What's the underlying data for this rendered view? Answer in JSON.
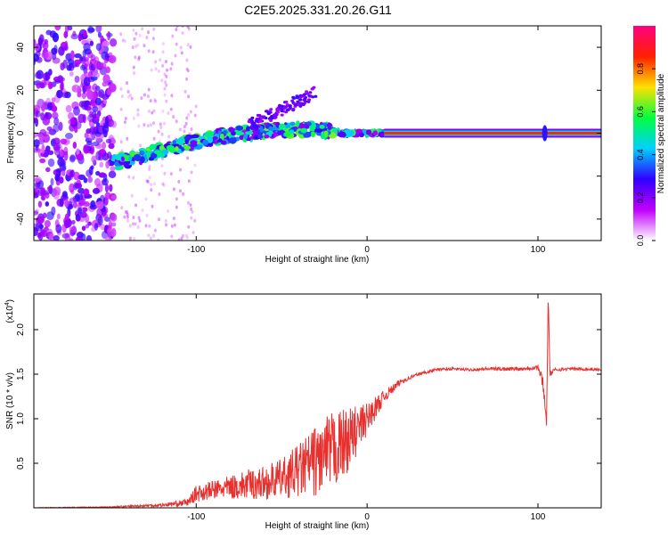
{
  "title": "C2E5.2025.331.20.26.G11",
  "colors": {
    "spectrum_carrier": "#e8302e",
    "snr_line": "#e8302e",
    "noise_purple": "#8a3fe0"
  },
  "chart_data": [
    {
      "type": "heatmap",
      "xlabel": "Height of straight line (km)",
      "ylabel": "Frequency (Hz)",
      "xlim": [
        -195,
        137
      ],
      "ylim": [
        -50,
        50
      ],
      "xticks": [
        -100,
        0,
        100
      ],
      "xtick_labels": [
        "-100",
        "0",
        "100"
      ],
      "yticks": [
        -40,
        -20,
        0,
        20,
        40
      ],
      "ytick_labels": [
        "-40",
        "-20",
        "0",
        "20",
        "40"
      ],
      "colorbar": {
        "label": "Normalized spectral amplitude",
        "range": [
          0,
          1
        ],
        "ticks": [
          0.0,
          0.2,
          0.4,
          0.6,
          0.8
        ],
        "tick_labels": [
          "0.0",
          "0.2",
          "0.4",
          "0.6",
          "0.8"
        ],
        "colormap": [
          "#ffffff",
          "#c000ff",
          "#3000ff",
          "#00d0ff",
          "#00ff40",
          "#ffe000",
          "#ff2000",
          "#ff0080"
        ]
      },
      "features": {
        "carrier_line": {
          "x_range": [
            10,
            137
          ],
          "freq": 0,
          "amplitude": 1.0
        },
        "ionospheric_trace": [
          {
            "x": -148,
            "freq": -14
          },
          {
            "x": -120,
            "freq": -8
          },
          {
            "x": -90,
            "freq": -2
          },
          {
            "x": -60,
            "freq": 1
          },
          {
            "x": -30,
            "freq": 2
          },
          {
            "x": -15,
            "freq": 0
          },
          {
            "x": 10,
            "freq": 0
          }
        ],
        "noise_region_x": [
          -195,
          -148
        ],
        "spike_near_x": 104
      },
      "grid": false
    },
    {
      "type": "line",
      "xlabel": "Height of straight line (km)",
      "ylabel": "SNR (10 * v/v)",
      "multiplier_label": "(x10",
      "multiplier_exp": "4",
      "multiplier_close": ")",
      "xlim": [
        -195,
        137
      ],
      "ylim": [
        0,
        24000
      ],
      "xticks": [
        -100,
        0,
        100
      ],
      "xtick_labels": [
        "-100",
        "0",
        "100"
      ],
      "yticks": [
        5000,
        10000,
        15000,
        20000
      ],
      "ytick_labels": [
        "0.5",
        "1.0",
        "1.5",
        "2.0"
      ],
      "series": [
        {
          "x": [
            -195,
            -150,
            -120,
            -105,
            -100,
            -90,
            -80,
            -70,
            -60,
            -50,
            -40,
            -30,
            -20,
            -10,
            0,
            10,
            20,
            30,
            40,
            50,
            60,
            70,
            80,
            90,
            100,
            103,
            105,
            106,
            107,
            110,
            120,
            137
          ],
          "y": [
            0,
            100,
            300,
            600,
            1600,
            2000,
            2300,
            2600,
            2800,
            3300,
            4200,
            5300,
            6300,
            7800,
            10000,
            12500,
            14200,
            15000,
            15500,
            15600,
            15500,
            15600,
            15600,
            15600,
            15800,
            14000,
            9500,
            23800,
            15000,
            15500,
            15600,
            15500
          ],
          "noise_amplitude": [
            30,
            50,
            200,
            400,
            900,
            1100,
            1300,
            1700,
            1900,
            2200,
            3000,
            4000,
            4500,
            3500,
            1800,
            700,
            300,
            200,
            150,
            150,
            150,
            200,
            200,
            200,
            300,
            800,
            400,
            300,
            300,
            200,
            150,
            150
          ]
        }
      ],
      "grid": false
    }
  ]
}
